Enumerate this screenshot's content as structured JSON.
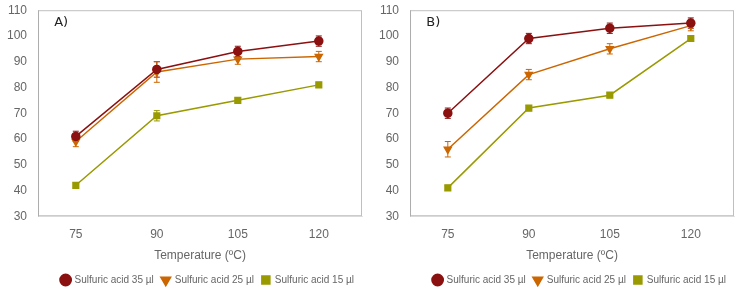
{
  "chart_data": [
    {
      "type": "line",
      "annotations": [
        "A)"
      ],
      "xlabel": "Temperature (ºC)",
      "x": [
        75,
        90,
        105,
        120
      ],
      "xlim": [
        68,
        128
      ],
      "xticks": [
        75,
        90,
        105,
        120
      ],
      "ylim": [
        30,
        110
      ],
      "yticks": [
        30,
        40,
        50,
        60,
        70,
        80,
        90,
        100,
        110
      ],
      "grid": false,
      "legend": "lower right",
      "series": [
        {
          "name": "Sulfuric acid 35 µl",
          "color": "#8B1010",
          "marker": "circle",
          "values": [
            61,
            87,
            94,
            98
          ],
          "errors": [
            2,
            3,
            2,
            2
          ]
        },
        {
          "name": "Sulfuric acid 25 µl",
          "color": "#CC6600",
          "marker": "triangle_down",
          "values": [
            59,
            86,
            91,
            92
          ],
          "errors": [
            2,
            4,
            2,
            2
          ]
        },
        {
          "name": "Sulfuric acid 15 µl",
          "color": "#999900",
          "marker": "square",
          "values": [
            42,
            69,
            75,
            81
          ],
          "errors": [
            1,
            2,
            1,
            1
          ]
        }
      ]
    },
    {
      "type": "line",
      "annotations": [
        "B)"
      ],
      "xlabel": "Temperature (ºC)",
      "x": [
        75,
        90,
        105,
        120
      ],
      "xlim": [
        68,
        128
      ],
      "xticks": [
        75,
        90,
        105,
        120
      ],
      "ylim": [
        30,
        110
      ],
      "yticks": [
        30,
        40,
        50,
        60,
        70,
        80,
        90,
        100,
        110
      ],
      "grid": false,
      "legend": "lower right",
      "series": [
        {
          "name": "Sulfuric acid 35 µl",
          "color": "#8B1010",
          "marker": "circle",
          "values": [
            70,
            99,
            103,
            105
          ],
          "errors": [
            2,
            2,
            2,
            2
          ]
        },
        {
          "name": "Sulfuric acid 25 µl",
          "color": "#CC6600",
          "marker": "triangle_down",
          "values": [
            56,
            85,
            95,
            104
          ],
          "errors": [
            3,
            2,
            2,
            2
          ]
        },
        {
          "name": "Sulfuric acid 15 µl",
          "color": "#999900",
          "marker": "square",
          "values": [
            41,
            72,
            77,
            99
          ],
          "errors": [
            1,
            1,
            1,
            1
          ]
        }
      ]
    }
  ]
}
